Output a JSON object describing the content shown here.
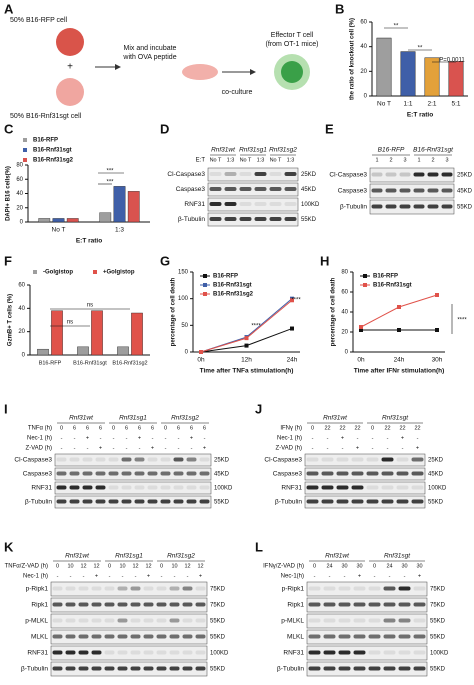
{
  "panel_labels": [
    "A",
    "B",
    "C",
    "D",
    "E",
    "F",
    "G",
    "H",
    "I",
    "J",
    "K",
    "L"
  ],
  "schematic": {
    "rfp_cell": "50% B16-RFP cell",
    "plus": "+",
    "ko_cell": "50% B16-Rnf31sgt cell",
    "mix": [
      "Mix and incubate",
      "with OVA peptide"
    ],
    "coculture": "co-culture",
    "effector": [
      "Effector T cell",
      "(from OT-1 mice)"
    ]
  },
  "chart_data": [
    {
      "type": "bar",
      "ylabel": "the ratio of knockout cell (%)",
      "xlabel": "E:T ratio",
      "categories": [
        "No T",
        "1:1",
        "2:1",
        "5:1"
      ],
      "values": [
        47,
        36,
        31,
        28
      ],
      "colors": [
        "#9e9e9e",
        "#3f5fa8",
        "#e3a13a",
        "#d9534f"
      ],
      "ylim": [
        0,
        60
      ],
      "yticks": [
        0,
        20,
        40,
        60
      ],
      "annotations": [
        "**",
        "**",
        "P=0.0011"
      ]
    },
    {
      "type": "bar",
      "ylabel": "DAPI+ B16 cells(%)",
      "xlabel": "E:T ratio",
      "categories": [
        "No T",
        "1:3"
      ],
      "series": [
        {
          "name": "B16-RFP",
          "color": "#9e9e9e",
          "values": [
            5,
            13
          ]
        },
        {
          "name": "B16-Rnf31sgt",
          "color": "#3f5fa8",
          "values": [
            5,
            50
          ]
        },
        {
          "name": "B16-Rnf31sg2",
          "color": "#d9534f",
          "values": [
            5,
            43
          ]
        }
      ],
      "ylim": [
        0,
        80
      ],
      "yticks": [
        0,
        20,
        40,
        60,
        80
      ],
      "annotations": [
        "***",
        "***"
      ]
    },
    {
      "type": "bar",
      "ylabel": "GzmB+ T cells (%)",
      "categories": [
        "B16-RFP",
        "B16-Rnf31sgt",
        "B16-Rnf31sg2"
      ],
      "series": [
        {
          "name": "-Golgistop",
          "color": "#9e9e9e",
          "values": [
            5,
            7,
            7
          ]
        },
        {
          "name": "+Golgistop",
          "color": "#e0524a",
          "values": [
            38,
            38,
            36
          ]
        }
      ],
      "ylim": [
        0,
        60
      ],
      "yticks": [
        0,
        20,
        40,
        60
      ],
      "annotations": [
        "ns",
        "ns"
      ]
    },
    {
      "type": "line",
      "ylabel": "percentage of cell death",
      "xlabel": "Time after TNFa stimulation(h)",
      "categories": [
        "0h",
        "12h",
        "24h"
      ],
      "series": [
        {
          "name": "B16-RFP",
          "color": "#111111",
          "values": [
            0,
            12,
            44
          ]
        },
        {
          "name": "B16-Rnf31sgt",
          "color": "#3f5fa8",
          "values": [
            0,
            28,
            100
          ]
        },
        {
          "name": "B16-Rnf31sg2",
          "color": "#e0524a",
          "values": [
            0,
            26,
            97
          ]
        }
      ],
      "ylim": [
        0,
        150
      ],
      "yticks": [
        0,
        50,
        100,
        150
      ],
      "annotations": [
        "****",
        "****"
      ]
    },
    {
      "type": "line",
      "ylabel": "percentage of cell death",
      "xlabel": "Time after IFNr stimulation(h)",
      "categories": [
        "0h",
        "24h",
        "30h"
      ],
      "series": [
        {
          "name": "B16-RFP",
          "color": "#111111",
          "values": [
            22,
            22,
            22
          ]
        },
        {
          "name": "B16-Rnf31sgt",
          "color": "#e0524a",
          "values": [
            25,
            45,
            57
          ]
        }
      ],
      "ylim": [
        0,
        80
      ],
      "yticks": [
        0,
        20,
        40,
        60,
        80
      ],
      "annotations": [
        "****"
      ]
    }
  ],
  "blots": [
    {
      "groups": [
        "Rnf31wt",
        "Rnf31sg1",
        "Rnf31sg2"
      ],
      "conditions": [
        {
          "label": "E:T",
          "values": [
            "No T",
            "1:3",
            "No T",
            "1:3",
            "No T",
            "1:3"
          ]
        }
      ],
      "rows": [
        {
          "label": "Cl-Caspase3",
          "marker": "25KD"
        },
        {
          "label": "Caspase3",
          "marker": "45KD"
        },
        {
          "label": "RNF31",
          "marker": "100KD"
        },
        {
          "label": "β-Tubulin",
          "marker": "55KD"
        }
      ]
    },
    {
      "groups": [
        "B16-RFP",
        "B16-Rnf31sgt"
      ],
      "conditions": [
        {
          "values": [
            "1",
            "2",
            "3",
            "1",
            "2",
            "3"
          ]
        }
      ],
      "rows": [
        {
          "label": "Cl-Caspase3",
          "marker": "25KD"
        },
        {
          "label": "Caspase3",
          "marker": "45KD"
        },
        {
          "label": "β-Tubulin",
          "marker": "55KD"
        }
      ]
    },
    {
      "groups": [
        "Rnf31wt",
        "Rnf31sg1",
        "Rnf31sg2"
      ],
      "conditions": [
        {
          "label": "TNFα (h)",
          "values": [
            "0",
            "6",
            "6",
            "6",
            "0",
            "6",
            "6",
            "6",
            "0",
            "6",
            "6",
            "6"
          ]
        },
        {
          "label": "Nec-1 (h)",
          "values": [
            "-",
            "-",
            "+",
            "-",
            "-",
            "-",
            "+",
            "-",
            "-",
            "-",
            "+",
            "-"
          ]
        },
        {
          "label": "Z-VAD (h)",
          "values": [
            "-",
            "-",
            "-",
            "+",
            "-",
            "-",
            "-",
            "+",
            "-",
            "-",
            "-",
            "+"
          ]
        }
      ],
      "rows": [
        {
          "label": "Cl-Caspase3",
          "marker": "25KD"
        },
        {
          "label": "Caspase3",
          "marker": "45KD"
        },
        {
          "label": "RNF31",
          "marker": "100KD"
        },
        {
          "label": "β-Tubulin",
          "marker": "55KD"
        }
      ]
    },
    {
      "groups": [
        "Rnf31wt",
        "Rnf31sgt"
      ],
      "conditions": [
        {
          "label": "IFNγ (h)",
          "values": [
            "0",
            "22",
            "22",
            "22",
            "0",
            "22",
            "22",
            "22"
          ]
        },
        {
          "label": "Nec-1 (h)",
          "values": [
            "-",
            "-",
            "+",
            "-",
            "-",
            "-",
            "+",
            "-"
          ]
        },
        {
          "label": "Z-VAD (h)",
          "values": [
            "-",
            "-",
            "-",
            "+",
            "-",
            "-",
            "-",
            "+"
          ]
        }
      ],
      "rows": [
        {
          "label": "Cl-Caspase3",
          "marker": "25KD"
        },
        {
          "label": "Caspase3",
          "marker": "45KD"
        },
        {
          "label": "RNF31",
          "marker": "100KD"
        },
        {
          "label": "β-Tubulin",
          "marker": "55KD"
        }
      ]
    },
    {
      "groups": [
        "Rnf31wt",
        "Rnf31sg1",
        "Rnf31sg2"
      ],
      "conditions": [
        {
          "label": "TNFα/Z-VAD (h)",
          "values": [
            "0",
            "10",
            "12",
            "12",
            "0",
            "10",
            "12",
            "12",
            "0",
            "10",
            "12",
            "12"
          ]
        },
        {
          "label": "Nec-1 (h)",
          "values": [
            "-",
            "-",
            "-",
            "+",
            "-",
            "-",
            "-",
            "+",
            "-",
            "-",
            "-",
            "+"
          ]
        }
      ],
      "rows": [
        {
          "label": "p-Ripk1",
          "marker": "75KD"
        },
        {
          "label": "Ripk1",
          "marker": "75KD"
        },
        {
          "label": "p-MLKL",
          "marker": "55KD"
        },
        {
          "label": "MLKL",
          "marker": "55KD"
        },
        {
          "label": "RNF31",
          "marker": "100KD"
        },
        {
          "label": "β-Tubulin",
          "marker": "55KD"
        }
      ]
    },
    {
      "groups": [
        "Rnf31wt",
        "Rnf31sgt"
      ],
      "conditions": [
        {
          "label": "IFNγ/Z-VAD (h)",
          "values": [
            "0",
            "24",
            "30",
            "30",
            "0",
            "24",
            "30",
            "30"
          ]
        },
        {
          "label": "Nec-1(h)",
          "values": [
            "-",
            "-",
            "-",
            "+",
            "-",
            "-",
            "-",
            "+"
          ]
        }
      ],
      "rows": [
        {
          "label": "p-Ripk1",
          "marker": "75KD"
        },
        {
          "label": "Ripk1",
          "marker": "75KD"
        },
        {
          "label": "p-MLKL",
          "marker": "55KD"
        },
        {
          "label": "MLKL",
          "marker": "55KD"
        },
        {
          "label": "RNF31",
          "marker": "100KD"
        },
        {
          "label": "β-Tubulin",
          "marker": "55KD"
        }
      ]
    }
  ]
}
